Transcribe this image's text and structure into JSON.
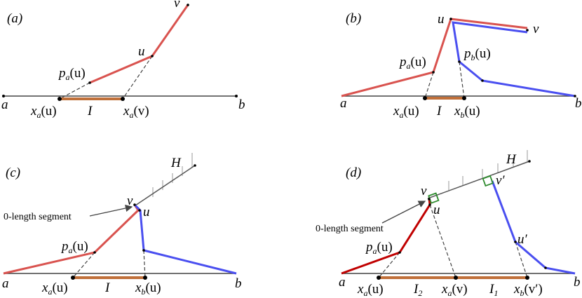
{
  "panels": [
    {
      "tag": "(a)",
      "labels": [
        {
          "main": "v"
        },
        {
          "main": "u"
        },
        {
          "main": "p",
          "sub": "a",
          "rest": "(u)"
        },
        {
          "main": "a"
        },
        {
          "main": "b"
        },
        {
          "main": "x",
          "sub": "a",
          "rest": "(u)"
        },
        {
          "main": "I"
        },
        {
          "main": "x",
          "sub": "a",
          "rest": "(v)"
        }
      ]
    },
    {
      "tag": "(b)",
      "labels": [
        {
          "main": "u"
        },
        {
          "main": "v"
        },
        {
          "main": "p",
          "sub": "a",
          "rest": "(u)"
        },
        {
          "main": "p",
          "sub": "b",
          "rest": "(u)"
        },
        {
          "main": "a"
        },
        {
          "main": "b"
        },
        {
          "main": "x",
          "sub": "a",
          "rest": "(u)"
        },
        {
          "main": "I"
        },
        {
          "main": "x",
          "sub": "b",
          "rest": "(u)"
        }
      ]
    },
    {
      "tag": "(c)",
      "note": "0-length segment",
      "labels": [
        {
          "main": "H"
        },
        {
          "main": "v"
        },
        {
          "main": "u"
        },
        {
          "main": "p",
          "sub": "a",
          "rest": "(u)"
        },
        {
          "main": "a"
        },
        {
          "main": "b"
        },
        {
          "main": "x",
          "sub": "a",
          "rest": "(u)"
        },
        {
          "main": "I"
        },
        {
          "main": "x",
          "sub": "b",
          "rest": "(u)"
        }
      ]
    },
    {
      "tag": "(d)",
      "note": "0-length segment",
      "labels": [
        {
          "main": "H"
        },
        {
          "main": "v"
        },
        {
          "main": "v′"
        },
        {
          "main": "u"
        },
        {
          "main": "u′"
        },
        {
          "main": "p",
          "sub": "a",
          "rest": "(u)"
        },
        {
          "main": "a"
        },
        {
          "main": "b"
        },
        {
          "main": "x",
          "sub": "a",
          "rest": "(u)"
        },
        {
          "main": "I",
          "sub": "2"
        },
        {
          "main": "x",
          "sub": "a",
          "rest": "(v)"
        },
        {
          "main": "I",
          "sub": "1"
        },
        {
          "main": "x",
          "sub": "b",
          "rest": "(v′)"
        }
      ]
    }
  ]
}
